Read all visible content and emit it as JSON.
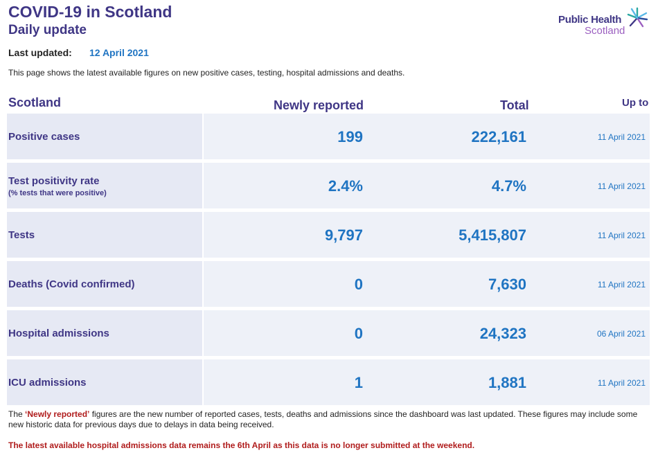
{
  "header": {
    "title": "COVID-19 in Scotland",
    "subtitle": "Daily update",
    "logo_line1": "Public Health",
    "logo_line2": "Scotland",
    "logo_icon": "star-burst-icon",
    "last_updated_label": "Last updated:",
    "last_updated_value": "12 April 2021",
    "intro": "This page shows the latest available figures on new positive cases, testing, hospital admissions and deaths."
  },
  "table": {
    "headers": {
      "region": "Scotland",
      "new": "Newly reported",
      "total": "Total",
      "upto": "Up to"
    },
    "rows": [
      {
        "label": "Positive cases",
        "sublabel": "",
        "new": "199",
        "total": "222,161",
        "date": "11 April 2021"
      },
      {
        "label": "Test positivity rate",
        "sublabel": "(% tests that were positive)",
        "new": "2.4%",
        "total": "4.7%",
        "date": "11 April 2021"
      },
      {
        "label": "Tests",
        "sublabel": "",
        "new": "9,797",
        "total": "5,415,807",
        "date": "11 April 2021"
      },
      {
        "label": "Deaths (Covid confirmed)",
        "sublabel": "",
        "new": "0",
        "total": "7,630",
        "date": "11 April 2021"
      },
      {
        "label": "Hospital admissions",
        "sublabel": "",
        "new": "0",
        "total": "24,323",
        "date": "06 April 2021"
      },
      {
        "label": "ICU admissions",
        "sublabel": "",
        "new": "1",
        "total": "1,881",
        "date": "11 April 2021"
      }
    ]
  },
  "footer": {
    "note_prefix": "The ",
    "note_emphasis": "‘Newly reported’",
    "note_rest": " figures are the new number of reported cases, tests, deaths and admissions since the dashboard was last updated. These figures may include some new historic data for previous days due to delays in data being received.",
    "warning": "The latest available hospital admissions data remains the 6th April as this data is no longer submitted at the weekend."
  },
  "colors": {
    "brand_purple": "#3f3685",
    "value_blue": "#1f74c2",
    "warning_red": "#b01c1c"
  }
}
